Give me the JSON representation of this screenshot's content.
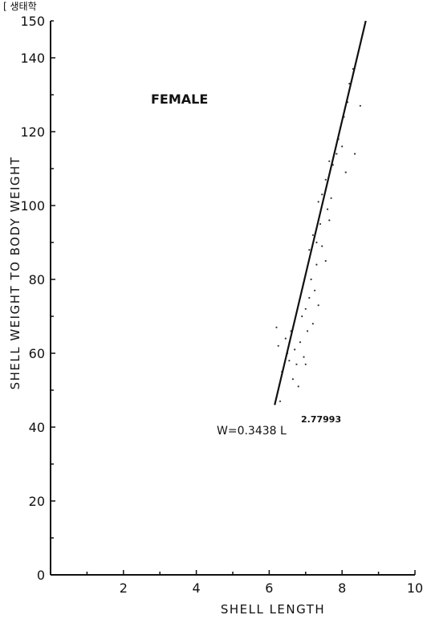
{
  "header_text": "[ 생태학",
  "panel_label": "FEMALE",
  "equation": {
    "base": "W=0.3438 L",
    "exponent": "2.77993"
  },
  "chart_data": {
    "type": "scatter",
    "title": "",
    "xlabel": "SHELL LENGTH",
    "ylabel": "SHELL WEIGHT TO BODY WEIGHT",
    "xlim": [
      0,
      10
    ],
    "ylim": [
      0,
      150
    ],
    "x_ticks": [
      "2",
      "4",
      "6",
      "8",
      "10"
    ],
    "y_ticks": [
      "0",
      "20",
      "40",
      "60",
      "80",
      "100",
      "120",
      "140",
      "150"
    ],
    "grid": false,
    "fit_line": {
      "label": "W=0.3438 L^2.77993",
      "x": [
        6.15,
        8.65
      ],
      "y": [
        46,
        150
      ]
    },
    "series": [
      {
        "points": [
          [
            6.2,
            67
          ],
          [
            6.25,
            62
          ],
          [
            6.35,
            55
          ],
          [
            6.45,
            64
          ],
          [
            6.5,
            60
          ],
          [
            6.55,
            58
          ],
          [
            6.6,
            66
          ],
          [
            6.65,
            53
          ],
          [
            6.7,
            61
          ],
          [
            6.75,
            57
          ],
          [
            6.8,
            51
          ],
          [
            6.85,
            63
          ],
          [
            6.9,
            70
          ],
          [
            6.95,
            59
          ],
          [
            7.0,
            57
          ],
          [
            7.0,
            72
          ],
          [
            7.05,
            66
          ],
          [
            7.1,
            75
          ],
          [
            7.15,
            80
          ],
          [
            7.2,
            68
          ],
          [
            7.25,
            77
          ],
          [
            7.3,
            84
          ],
          [
            7.35,
            73
          ],
          [
            7.1,
            88
          ],
          [
            7.2,
            92
          ],
          [
            7.3,
            90
          ],
          [
            7.4,
            95
          ],
          [
            7.45,
            89
          ],
          [
            7.55,
            85
          ],
          [
            7.35,
            101
          ],
          [
            7.45,
            103
          ],
          [
            7.55,
            107
          ],
          [
            7.6,
            99
          ],
          [
            7.65,
            96
          ],
          [
            7.7,
            102
          ],
          [
            7.75,
            111
          ],
          [
            7.65,
            112
          ],
          [
            7.85,
            114
          ],
          [
            7.9,
            118
          ],
          [
            7.95,
            121
          ],
          [
            8.0,
            116
          ],
          [
            8.05,
            124
          ],
          [
            8.1,
            109
          ],
          [
            8.15,
            128
          ],
          [
            8.2,
            133
          ],
          [
            8.3,
            137
          ],
          [
            8.35,
            114
          ],
          [
            8.5,
            127
          ],
          [
            6.3,
            47
          ]
        ]
      }
    ]
  }
}
